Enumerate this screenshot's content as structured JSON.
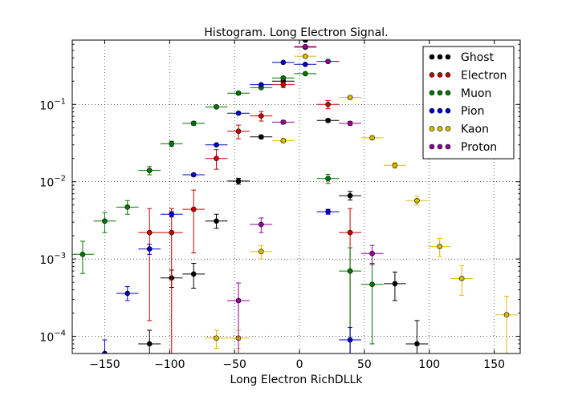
{
  "chart_data": {
    "type": "scatter",
    "title": "Histogram. Long Electron Signal.",
    "xlabel": "Long Electron RichDLLk",
    "ylabel": "",
    "xlim": [
      -175,
      170
    ],
    "ylim": [
      6e-05,
      0.68
    ],
    "yscale": "log",
    "grid": true,
    "legend_position": "top-right",
    "x_ticks": [
      -150,
      -100,
      -50,
      0,
      50,
      100,
      150
    ],
    "x_tick_labels": [
      "−150",
      "−100",
      "−50",
      "0",
      "50",
      "100",
      "150"
    ],
    "y_ticks": [
      0.0001,
      0.001,
      0.01,
      0.1
    ],
    "y_tick_labels": [
      [
        "10",
        "−4"
      ],
      [
        "10",
        "−3"
      ],
      [
        "10",
        "−2"
      ],
      [
        "10",
        "−1"
      ]
    ],
    "series": [
      {
        "name": "Ghost",
        "color": "#000000",
        "points": [
          {
            "x": -115.5,
            "y": 8e-05,
            "lo": 5e-05,
            "hi": 0.00012
          },
          {
            "x": -98.5,
            "y": 0.00057,
            "lo": 0.00043,
            "hi": 0.00072
          },
          {
            "x": -81.5,
            "y": 0.00064,
            "lo": 0.00042,
            "hi": 0.00088
          },
          {
            "x": -64,
            "y": 0.0031,
            "lo": 0.0025,
            "hi": 0.0038
          },
          {
            "x": -47,
            "y": 0.0102,
            "lo": 0.0093,
            "hi": 0.0111
          },
          {
            "x": -29.5,
            "y": 0.038,
            "lo": 0.036,
            "hi": 0.04
          },
          {
            "x": -12.5,
            "y": 0.2,
            "lo": 0.195,
            "hi": 0.205
          },
          {
            "x": 4.5,
            "y": 0.68,
            "lo": 0.67,
            "hi": 0.69
          },
          {
            "x": 22,
            "y": 0.062,
            "lo": 0.059,
            "hi": 0.065
          },
          {
            "x": 39,
            "y": 0.0066,
            "lo": 0.0058,
            "hi": 0.0075
          },
          {
            "x": 73.5,
            "y": 0.00048,
            "lo": 0.00029,
            "hi": 0.00068
          },
          {
            "x": 90.5,
            "y": 8e-05,
            "lo": 4e-05,
            "hi": 0.00016
          }
        ]
      },
      {
        "name": "Electron",
        "color": "#cc0000",
        "points": [
          {
            "x": -115.5,
            "y": 0.0022,
            "lo": 0.00016,
            "hi": 0.0045
          },
          {
            "x": -98.5,
            "y": 0.0022,
            "lo": 6e-05,
            "hi": 0.0045
          },
          {
            "x": -81.5,
            "y": 0.0044,
            "lo": 0.0012,
            "hi": 0.0078
          },
          {
            "x": -64,
            "y": 0.02,
            "lo": 0.0145,
            "hi": 0.026
          },
          {
            "x": -47,
            "y": 0.045,
            "lo": 0.036,
            "hi": 0.054
          },
          {
            "x": -29.5,
            "y": 0.071,
            "lo": 0.061,
            "hi": 0.081
          },
          {
            "x": -12.5,
            "y": 0.18,
            "lo": 0.165,
            "hi": 0.195
          },
          {
            "x": 4.5,
            "y": 0.55,
            "lo": 0.53,
            "hi": 0.57
          },
          {
            "x": 22,
            "y": 0.1,
            "lo": 0.088,
            "hi": 0.112
          },
          {
            "x": 39,
            "y": 0.0022,
            "lo": 6e-05,
            "hi": 0.0045
          }
        ]
      },
      {
        "name": "Muon",
        "color": "#007700",
        "points": [
          {
            "x": -167,
            "y": 0.00115,
            "lo": 0.00065,
            "hi": 0.0017
          },
          {
            "x": -150,
            "y": 0.0031,
            "lo": 0.0022,
            "hi": 0.004
          },
          {
            "x": -132.5,
            "y": 0.0047,
            "lo": 0.0038,
            "hi": 0.0057
          },
          {
            "x": -115.5,
            "y": 0.014,
            "lo": 0.0123,
            "hi": 0.0157
          },
          {
            "x": -98.5,
            "y": 0.031,
            "lo": 0.0285,
            "hi": 0.0335
          },
          {
            "x": -81.5,
            "y": 0.057,
            "lo": 0.054,
            "hi": 0.06
          },
          {
            "x": -64,
            "y": 0.093,
            "lo": 0.089,
            "hi": 0.097
          },
          {
            "x": -47,
            "y": 0.14,
            "lo": 0.135,
            "hi": 0.145
          },
          {
            "x": -29.5,
            "y": 0.165,
            "lo": 0.16,
            "hi": 0.17
          },
          {
            "x": -12.5,
            "y": 0.22,
            "lo": 0.214,
            "hi": 0.226
          },
          {
            "x": 4.5,
            "y": 0.25,
            "lo": 0.244,
            "hi": 0.256
          },
          {
            "x": 22,
            "y": 0.011,
            "lo": 0.0095,
            "hi": 0.0125
          },
          {
            "x": 39,
            "y": 0.0007,
            "lo": 6e-05,
            "hi": 0.0014
          },
          {
            "x": 56,
            "y": 0.00047,
            "lo": 8e-05,
            "hi": 0.00088
          }
        ]
      },
      {
        "name": "Pion",
        "color": "#0000cc",
        "points": [
          {
            "x": -150,
            "y": 6e-05,
            "lo": 4e-05,
            "hi": 9e-05
          },
          {
            "x": -132.5,
            "y": 0.00036,
            "lo": 0.00029,
            "hi": 0.00044
          },
          {
            "x": -115.5,
            "y": 0.00135,
            "lo": 0.00115,
            "hi": 0.00155
          },
          {
            "x": -98.5,
            "y": 0.0038,
            "lo": 0.0035,
            "hi": 0.0041
          },
          {
            "x": -81.5,
            "y": 0.0123,
            "lo": 0.0118,
            "hi": 0.0128
          },
          {
            "x": -64,
            "y": 0.03,
            "lo": 0.0292,
            "hi": 0.0308
          },
          {
            "x": -47,
            "y": 0.077,
            "lo": 0.075,
            "hi": 0.079
          },
          {
            "x": -29.5,
            "y": 0.18,
            "lo": 0.177,
            "hi": 0.183
          },
          {
            "x": -12.5,
            "y": 0.35,
            "lo": 0.345,
            "hi": 0.355
          },
          {
            "x": 4.5,
            "y": 0.33,
            "lo": 0.325,
            "hi": 0.335
          },
          {
            "x": 22,
            "y": 0.0041,
            "lo": 0.0038,
            "hi": 0.0044
          },
          {
            "x": 39,
            "y": 9e-05,
            "lo": 6e-05,
            "hi": 0.00013
          }
        ]
      },
      {
        "name": "Kaon",
        "color": "#ddbb00",
        "points": [
          {
            "x": -64,
            "y": 9.5e-05,
            "lo": 7e-05,
            "hi": 0.00012
          },
          {
            "x": -47,
            "y": 9.5e-05,
            "lo": 7e-05,
            "hi": 0.00012
          },
          {
            "x": -29.5,
            "y": 0.00125,
            "lo": 0.001,
            "hi": 0.0015
          },
          {
            "x": -12.5,
            "y": 0.034,
            "lo": 0.032,
            "hi": 0.036
          },
          {
            "x": 4.5,
            "y": 0.42,
            "lo": 0.41,
            "hi": 0.43
          },
          {
            "x": 22,
            "y": 0.36,
            "lo": 0.35,
            "hi": 0.37
          },
          {
            "x": 39,
            "y": 0.123,
            "lo": 0.119,
            "hi": 0.127
          },
          {
            "x": 56,
            "y": 0.037,
            "lo": 0.035,
            "hi": 0.039
          },
          {
            "x": 73.5,
            "y": 0.0163,
            "lo": 0.015,
            "hi": 0.0176
          },
          {
            "x": 90.5,
            "y": 0.0057,
            "lo": 0.005,
            "hi": 0.0065
          },
          {
            "x": 108,
            "y": 0.00145,
            "lo": 0.00108,
            "hi": 0.00185
          },
          {
            "x": 125,
            "y": 0.00056,
            "lo": 0.00034,
            "hi": 0.00082
          },
          {
            "x": 159.5,
            "y": 0.00019,
            "lo": 6e-05,
            "hi": 0.00033
          }
        ]
      },
      {
        "name": "Proton",
        "color": "#990099",
        "points": [
          {
            "x": -47,
            "y": 0.00029,
            "lo": 6e-05,
            "hi": 0.00049
          },
          {
            "x": -29.5,
            "y": 0.0028,
            "lo": 0.0022,
            "hi": 0.0034
          },
          {
            "x": -12.5,
            "y": 0.059,
            "lo": 0.056,
            "hi": 0.062
          },
          {
            "x": 4.5,
            "y": 0.56,
            "lo": 0.55,
            "hi": 0.57
          },
          {
            "x": 22,
            "y": 0.36,
            "lo": 0.35,
            "hi": 0.37
          },
          {
            "x": 39,
            "y": 0.057,
            "lo": 0.054,
            "hi": 0.06
          },
          {
            "x": 56,
            "y": 0.00118,
            "lo": 0.00085,
            "hi": 0.0015
          }
        ]
      }
    ]
  }
}
